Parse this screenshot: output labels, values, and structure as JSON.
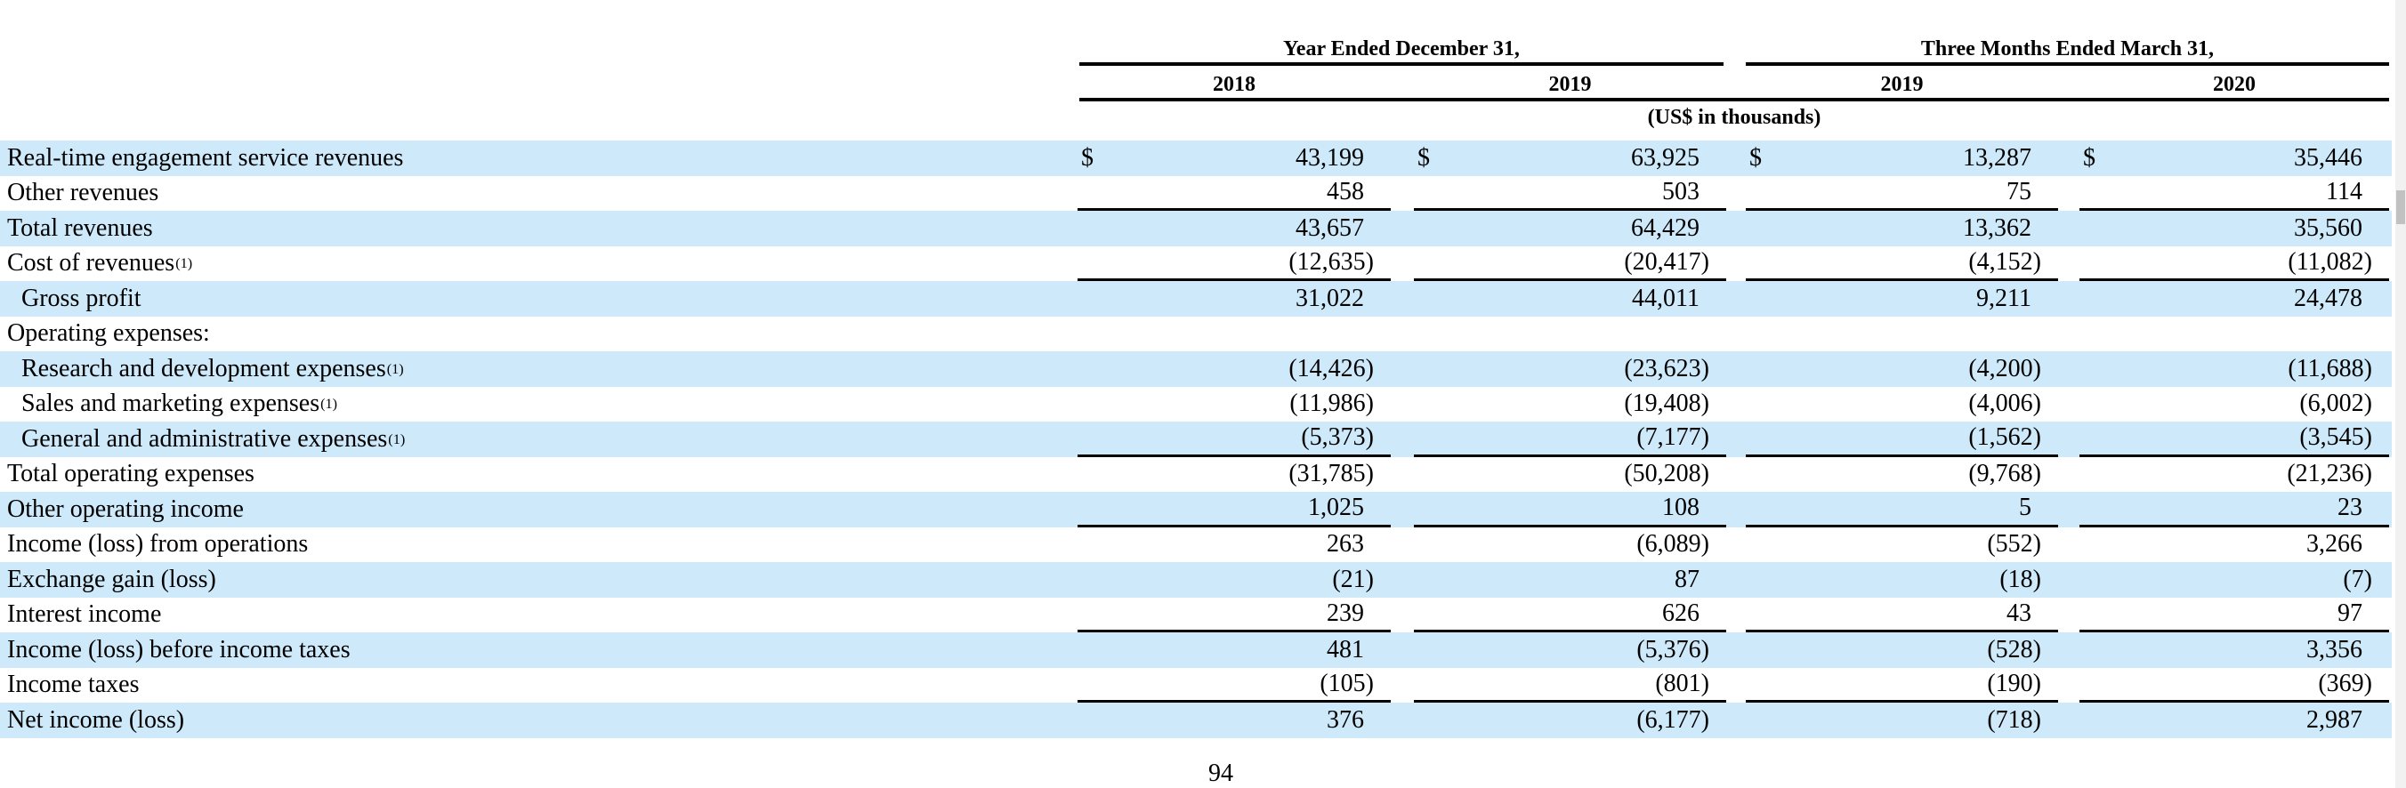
{
  "page": {
    "page_number": "94"
  },
  "table": {
    "groups": [
      {
        "label": "Year Ended December 31,",
        "years": [
          "2018",
          "2019"
        ]
      },
      {
        "label": "Three Months Ended March 31,",
        "years": [
          "2019",
          "2020"
        ]
      }
    ],
    "column_years": [
      "2018",
      "2019",
      "2019",
      "2020"
    ],
    "units_note": "(US$ in thousands)",
    "rows": [
      {
        "label": "Real-time engagement service revenues",
        "sup": "",
        "indent": 0,
        "shaded": true,
        "dollar": true,
        "underline": false,
        "values": [
          "43,199",
          "63,925",
          "13,287",
          "35,446"
        ]
      },
      {
        "label": "Other revenues",
        "sup": "",
        "indent": 0,
        "shaded": false,
        "dollar": false,
        "underline": true,
        "values": [
          "458",
          "503",
          "75",
          "114"
        ]
      },
      {
        "label": "Total revenues",
        "sup": "",
        "indent": 0,
        "shaded": true,
        "dollar": false,
        "underline": false,
        "values": [
          "43,657",
          "64,429",
          "13,362",
          "35,560"
        ]
      },
      {
        "label": "Cost of revenues",
        "sup": "(1)",
        "indent": 0,
        "shaded": false,
        "dollar": false,
        "underline": true,
        "values": [
          "(12,635)",
          "(20,417)",
          "(4,152)",
          "(11,082)"
        ]
      },
      {
        "label": "Gross profit",
        "sup": "",
        "indent": 1,
        "shaded": true,
        "dollar": false,
        "underline": false,
        "values": [
          "31,022",
          "44,011",
          "9,211",
          "24,478"
        ]
      },
      {
        "label": "Operating expenses:",
        "sup": "",
        "indent": 0,
        "shaded": false,
        "dollar": false,
        "underline": false,
        "values": [
          "",
          "",
          "",
          ""
        ]
      },
      {
        "label": "Research and development expenses",
        "sup": "(1)",
        "indent": 1,
        "shaded": true,
        "dollar": false,
        "underline": false,
        "values": [
          "(14,426)",
          "(23,623)",
          "(4,200)",
          "(11,688)"
        ]
      },
      {
        "label": "Sales and marketing expenses",
        "sup": "(1)",
        "indent": 1,
        "shaded": false,
        "dollar": false,
        "underline": false,
        "values": [
          "(11,986)",
          "(19,408)",
          "(4,006)",
          "(6,002)"
        ]
      },
      {
        "label": "General and administrative expenses",
        "sup": "(1)",
        "indent": 1,
        "shaded": true,
        "dollar": false,
        "underline": true,
        "values": [
          "(5,373)",
          "(7,177)",
          "(1,562)",
          "(3,545)"
        ]
      },
      {
        "label": "Total operating expenses",
        "sup": "",
        "indent": 0,
        "shaded": false,
        "dollar": false,
        "underline": false,
        "values": [
          "(31,785)",
          "(50,208)",
          "(9,768)",
          "(21,236)"
        ]
      },
      {
        "label": "Other operating income",
        "sup": "",
        "indent": 0,
        "shaded": true,
        "dollar": false,
        "underline": true,
        "values": [
          "1,025",
          "108",
          "5",
          "23"
        ]
      },
      {
        "label": "Income (loss) from operations",
        "sup": "",
        "indent": 0,
        "shaded": false,
        "dollar": false,
        "underline": false,
        "values": [
          "263",
          "(6,089)",
          "(552)",
          "3,266"
        ]
      },
      {
        "label": "Exchange gain (loss)",
        "sup": "",
        "indent": 0,
        "shaded": true,
        "dollar": false,
        "underline": false,
        "values": [
          "(21)",
          "87",
          "(18)",
          "(7)"
        ]
      },
      {
        "label": "Interest income",
        "sup": "",
        "indent": 0,
        "shaded": false,
        "dollar": false,
        "underline": true,
        "values": [
          "239",
          "626",
          "43",
          "97"
        ]
      },
      {
        "label": "Income (loss) before income taxes",
        "sup": "",
        "indent": 0,
        "shaded": true,
        "dollar": false,
        "underline": false,
        "values": [
          "481",
          "(5,376)",
          "(528)",
          "3,356"
        ]
      },
      {
        "label": "Income taxes",
        "sup": "",
        "indent": 0,
        "shaded": false,
        "dollar": false,
        "underline": true,
        "values": [
          "(105)",
          "(801)",
          "(190)",
          "(369)"
        ]
      },
      {
        "label": "Net income (loss)",
        "sup": "",
        "indent": 0,
        "shaded": true,
        "dollar": false,
        "underline": false,
        "values": [
          "376",
          "(6,177)",
          "(718)",
          "2,987"
        ]
      }
    ],
    "currency_symbol": "$"
  },
  "colors": {
    "row_shade": "#cde9fa",
    "text": "#000000",
    "rule": "#000000",
    "scrollbar_track": "#f1f1f1",
    "scrollbar_thumb": "#c1c1c1"
  }
}
